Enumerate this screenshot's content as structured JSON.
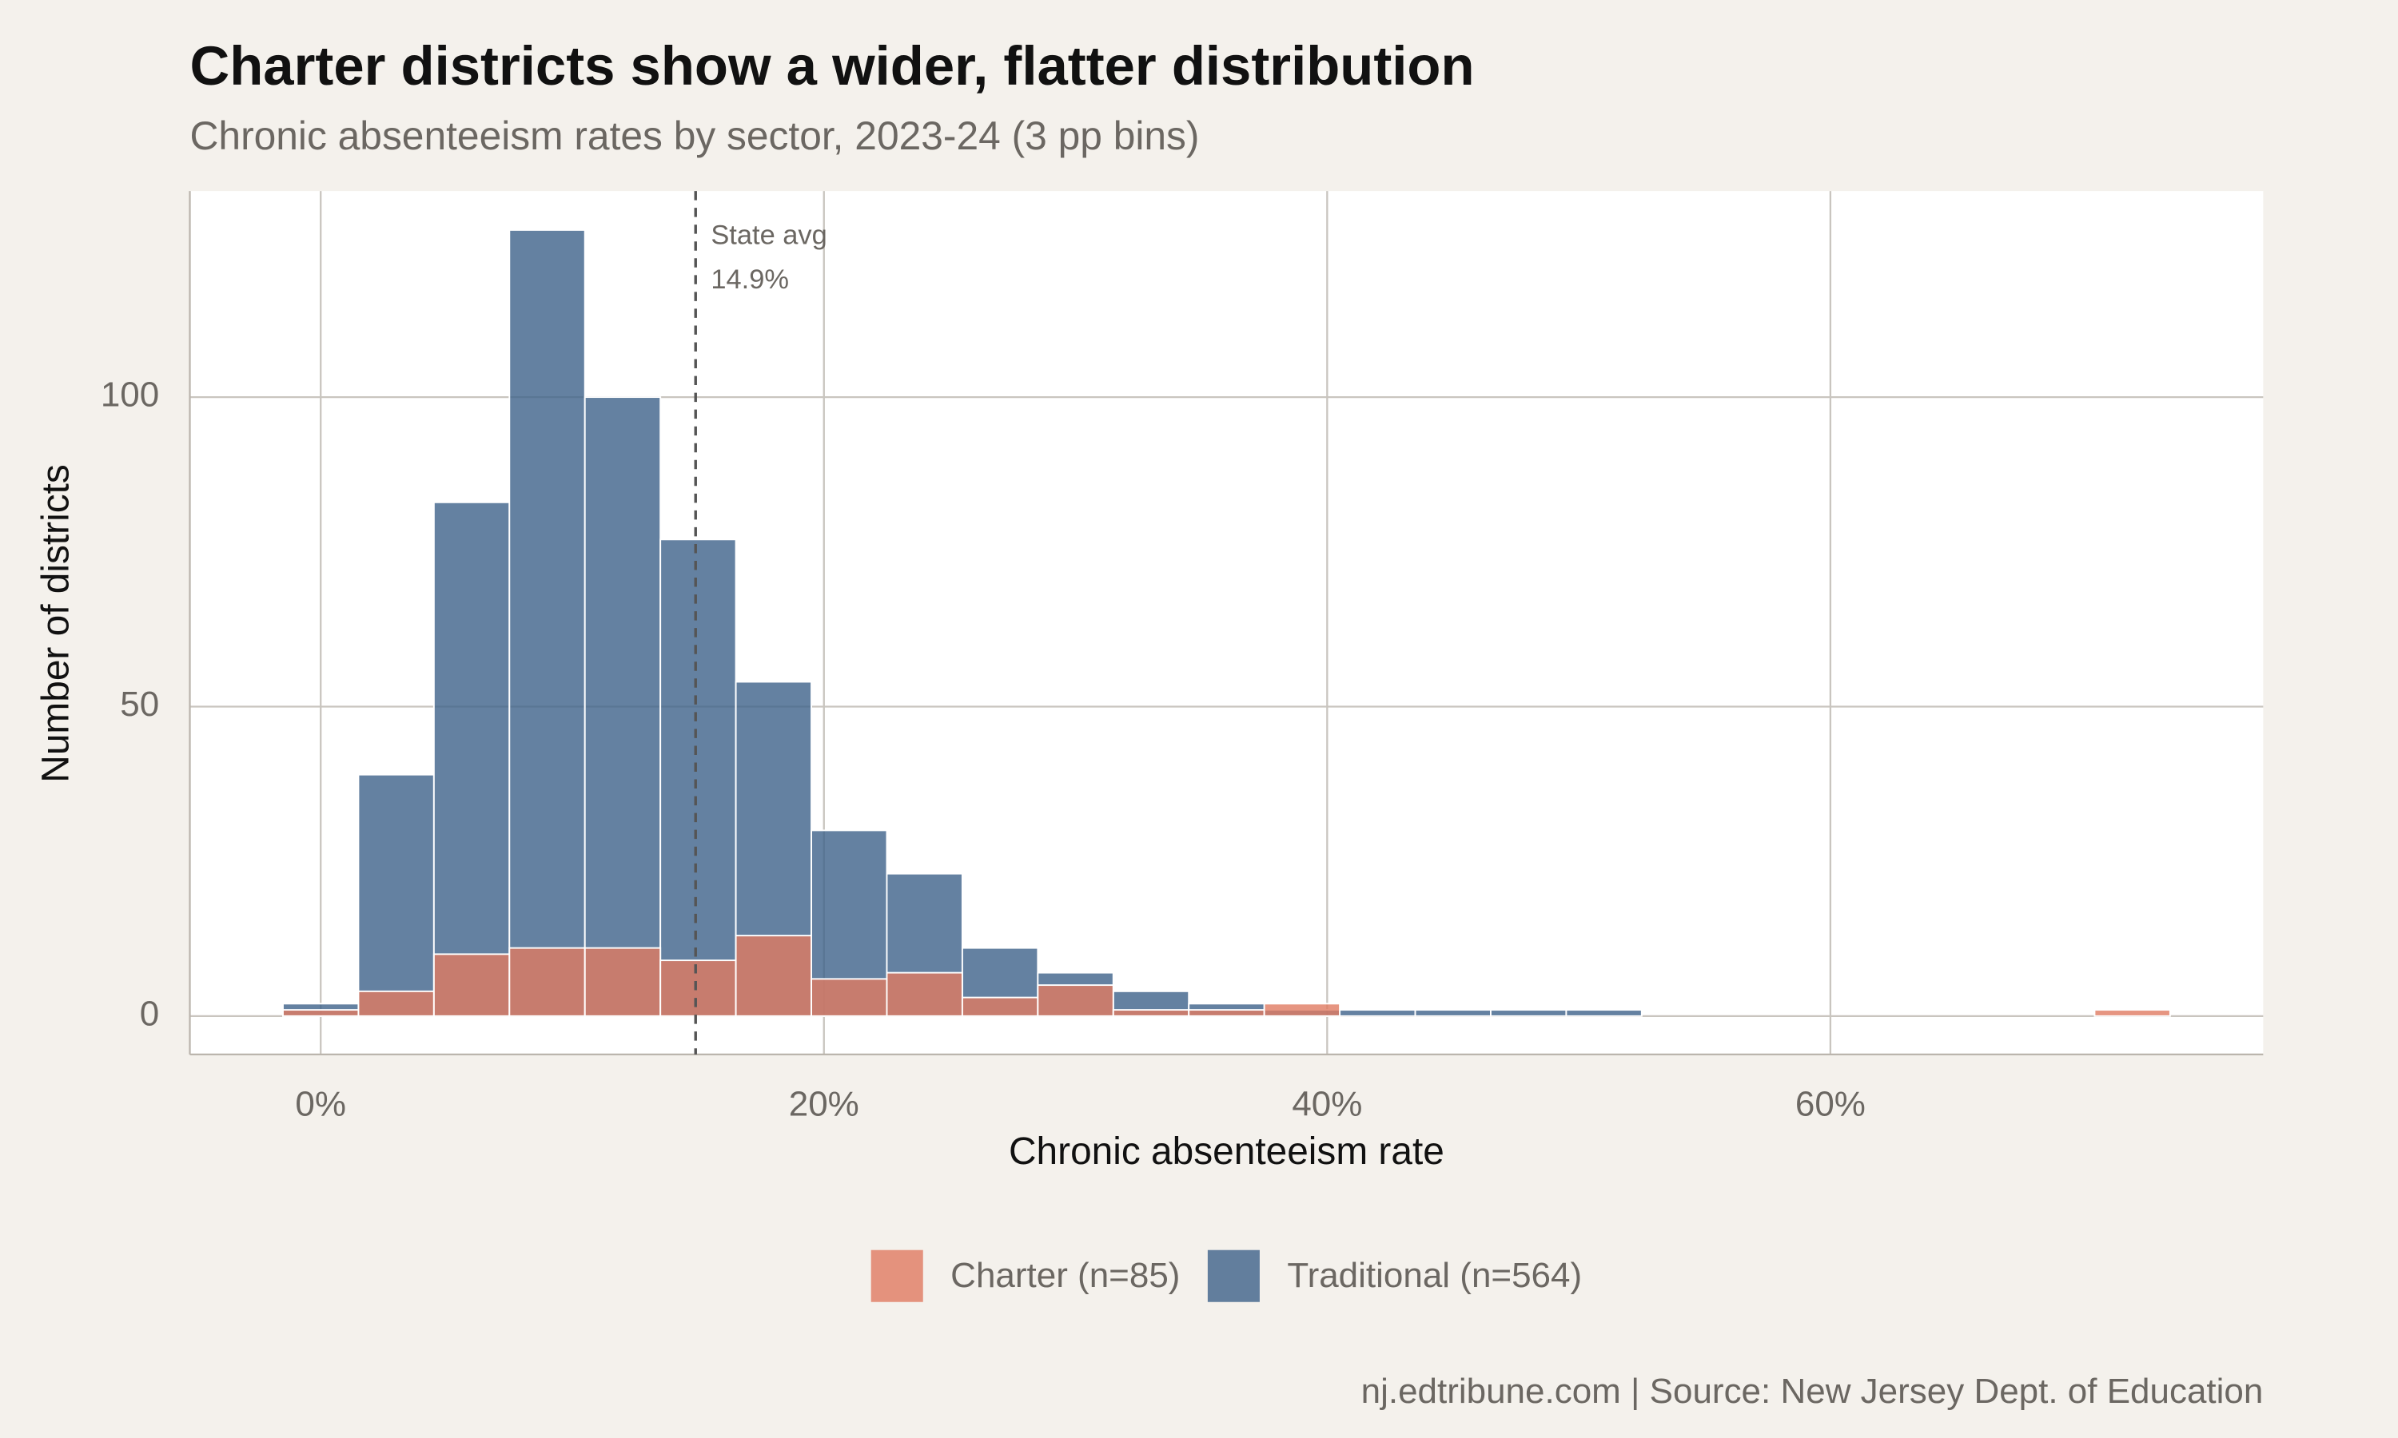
{
  "chart_data": {
    "type": "histogram",
    "title": "Charter districts show a wider, flatter distribution",
    "subtitle": "Chronic absenteeism rates by sector, 2023-24 (3 pp bins)",
    "x_label": "Chronic absenteeism rate",
    "y_label": "Number of districts",
    "caption": "nj.edtribune.com | Source: New Jersey Dept. of Education",
    "bins": [
      -1.5,
      1.5,
      4.5,
      7.5,
      10.5,
      13.5,
      16.5,
      19.5,
      22.5,
      25.5,
      28.5,
      31.5,
      34.5,
      37.5,
      40.5,
      43.5,
      46.5,
      49.5,
      52.5,
      55.5,
      58.5,
      61.5,
      64.5,
      67.5,
      70.5,
      73.5
    ],
    "series": [
      {
        "name": "Traditional (n=564)",
        "color": "#3d6189",
        "values": [
          2,
          39,
          83,
          127,
          100,
          77,
          54,
          30,
          23,
          11,
          7,
          4,
          2,
          1,
          1,
          1,
          1,
          1,
          0,
          0,
          0,
          0,
          0,
          0,
          0
        ]
      },
      {
        "name": "Charter (n=85)",
        "color": "#e07b61",
        "values": [
          1,
          4,
          10,
          11,
          11,
          9,
          13,
          6,
          7,
          3,
          5,
          1,
          1,
          2,
          0,
          0,
          0,
          0,
          0,
          0,
          0,
          0,
          0,
          0,
          1
        ]
      }
    ],
    "legend_order": [
      1,
      0
    ],
    "xlim": [
      -5.2,
      77.2
    ],
    "ylim": [
      -6.2,
      133.3
    ],
    "xticks": [
      {
        "value": 0,
        "label": "0%"
      },
      {
        "value": 20,
        "label": "20%"
      },
      {
        "value": 40,
        "label": "40%"
      },
      {
        "value": 60,
        "label": "60%"
      }
    ],
    "yticks": [
      0,
      50,
      100
    ],
    "grid": true,
    "reference_line": {
      "name": "State avg",
      "value": 14.9,
      "label": "14.9%"
    },
    "legend_position": "bottom"
  }
}
